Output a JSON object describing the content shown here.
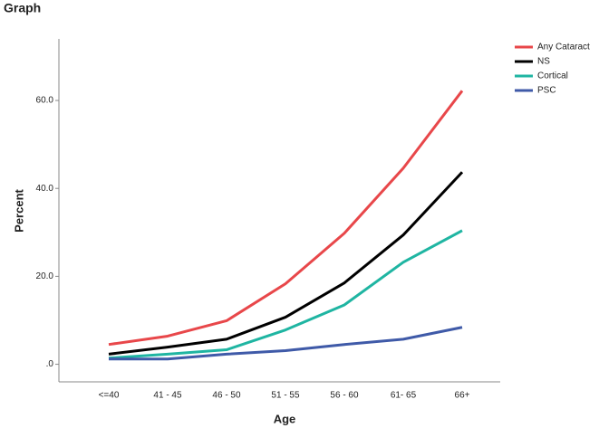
{
  "chart_data": {
    "type": "line",
    "title": "Graph",
    "x_label": "Age",
    "y_label": "Percent",
    "categories": [
      "<=40",
      "41 - 45",
      "46 - 50",
      "51 - 55",
      "56 - 60",
      "61- 65",
      "66+"
    ],
    "series": [
      {
        "name": "Any Cataract",
        "color": "#e8474a",
        "values": [
          4.5,
          6.4,
          9.9,
          18.3,
          29.8,
          44.6,
          62.2
        ]
      },
      {
        "name": "NS",
        "color": "#000000",
        "values": [
          2.3,
          3.9,
          5.7,
          10.7,
          18.5,
          29.4,
          43.7
        ]
      },
      {
        "name": "Cortical",
        "color": "#1fb5a2",
        "values": [
          1.4,
          2.3,
          3.3,
          7.8,
          13.5,
          23.2,
          30.4
        ]
      },
      {
        "name": "PSC",
        "color": "#3f5aa8",
        "values": [
          1.2,
          1.2,
          2.3,
          3.1,
          4.5,
          5.7,
          8.4
        ]
      }
    ],
    "ylim": [
      -4,
      74
    ],
    "yticks": [
      {
        "value": 0,
        "label": ".0"
      },
      {
        "value": 20,
        "label": "20.0"
      },
      {
        "value": 40,
        "label": "40.0"
      },
      {
        "value": 60,
        "label": "60.0"
      }
    ],
    "legend": "top-right"
  }
}
